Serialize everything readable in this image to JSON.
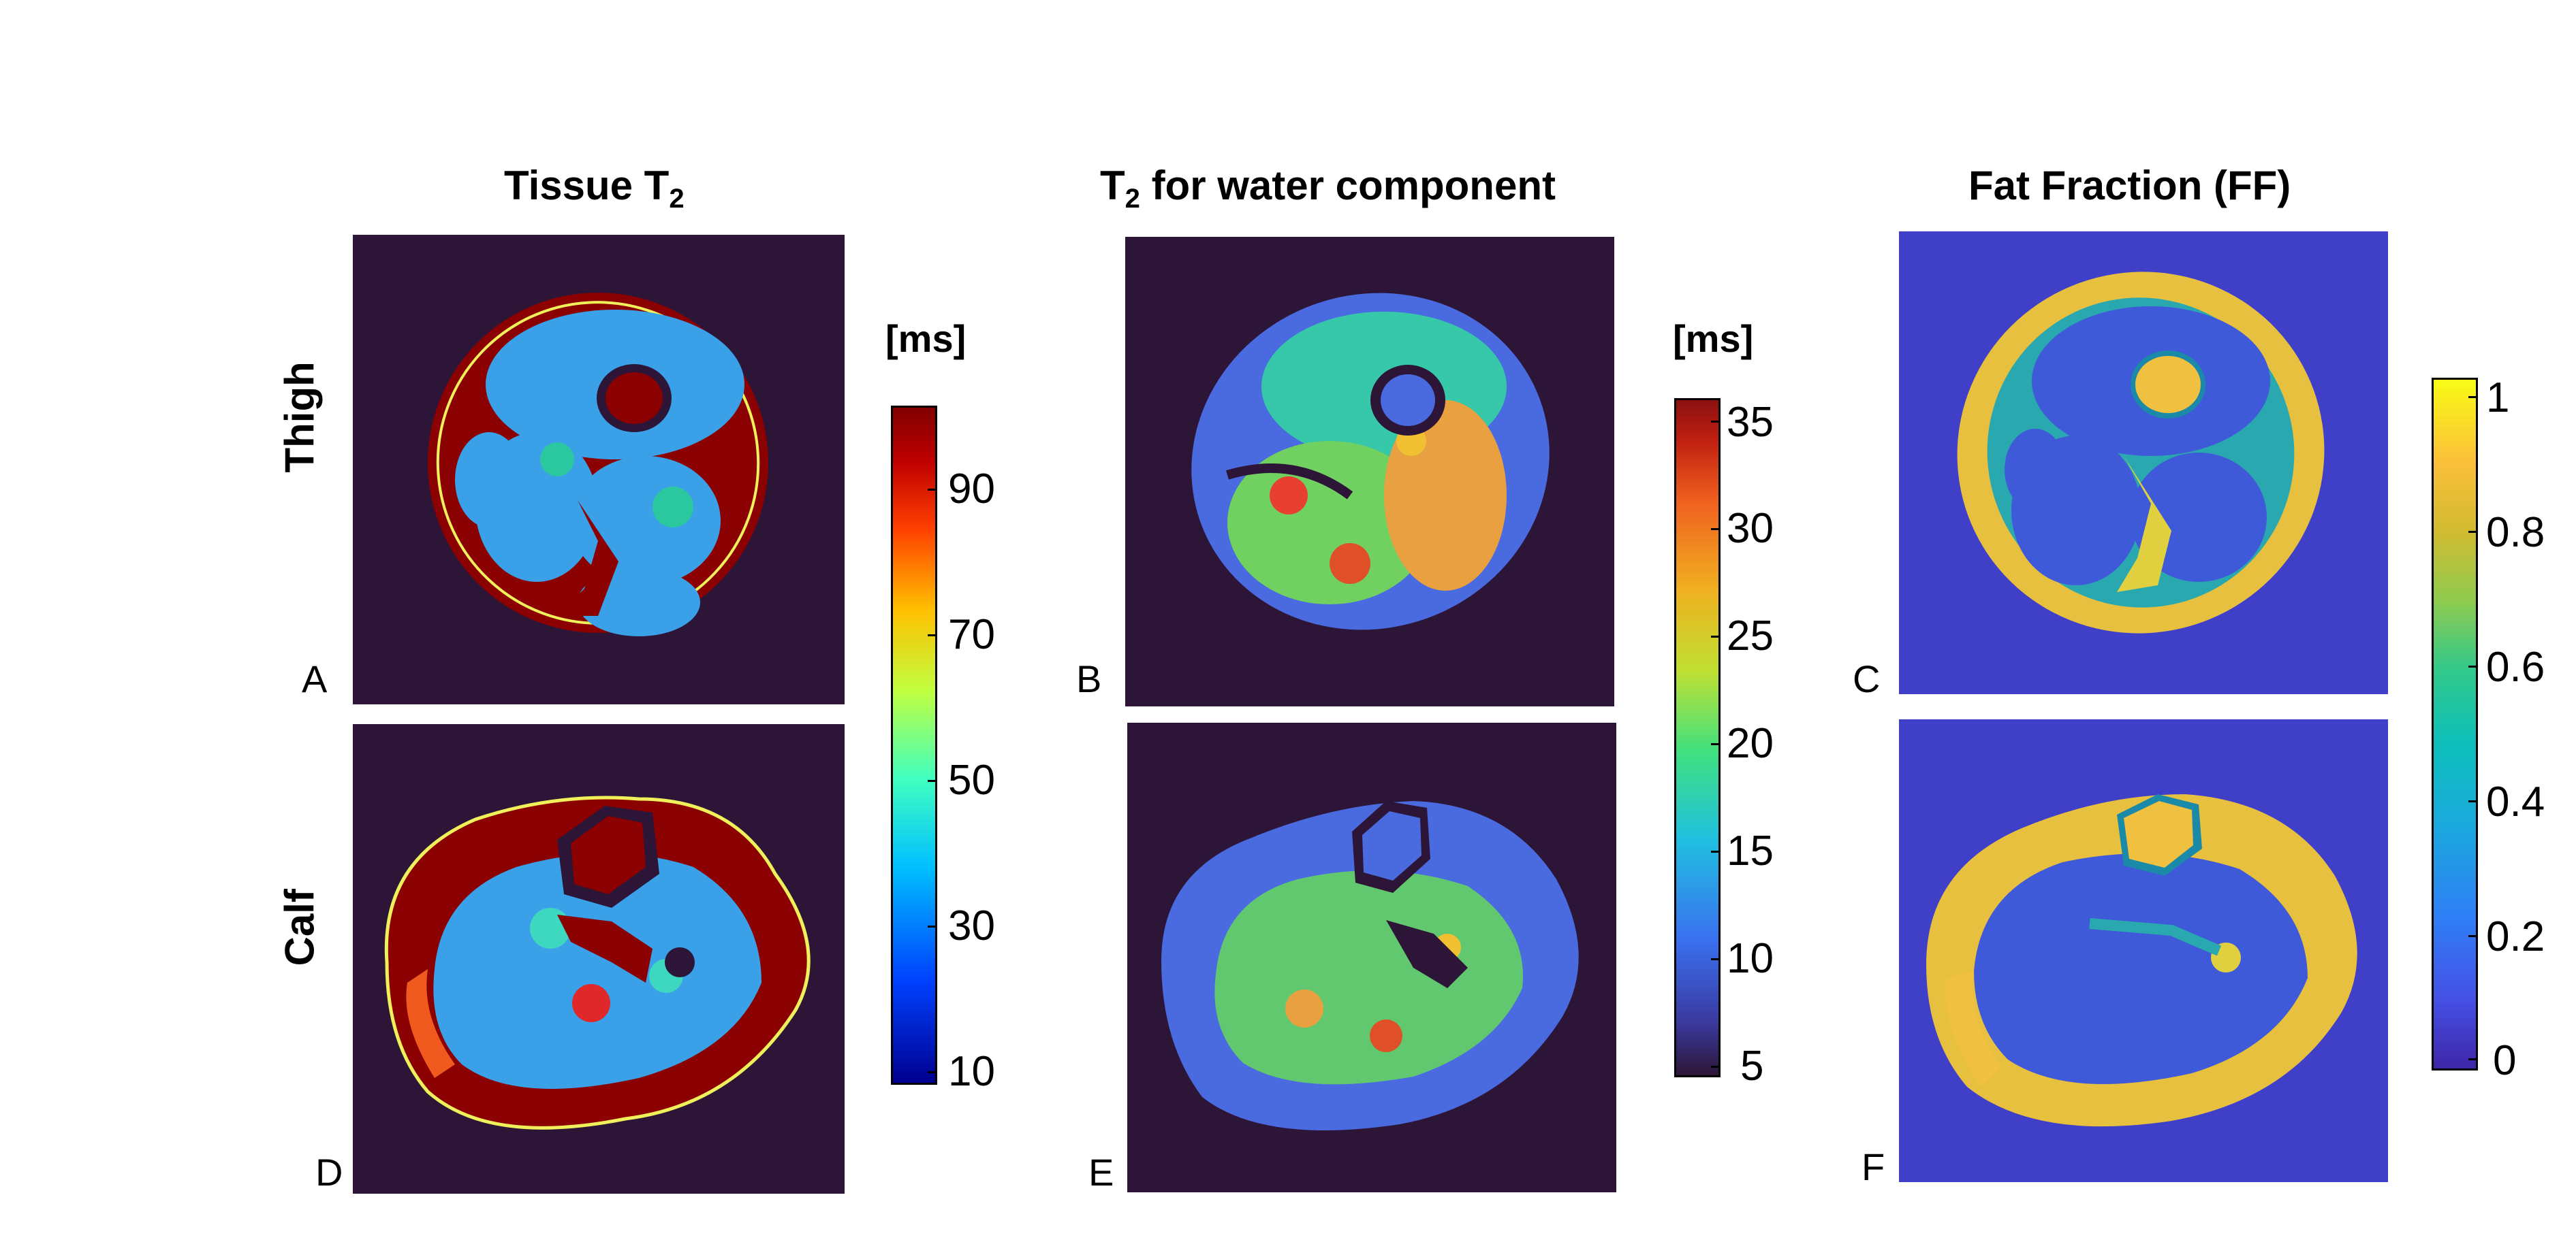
{
  "columns": [
    {
      "title_main": "Tissue T",
      "title_sub": "2",
      "title_suffix": ""
    },
    {
      "title_main": "T",
      "title_sub": "2",
      "title_suffix": " for water component"
    },
    {
      "title_main": "Fat Fraction (FF)",
      "title_sub": "",
      "title_suffix": ""
    }
  ],
  "rows": {
    "top": "Thigh",
    "bottom": "Calf"
  },
  "panels": {
    "A": "A",
    "B": "B",
    "C": "C",
    "D": "D",
    "E": "E",
    "F": "F"
  },
  "colorbars": {
    "t2": {
      "unit": "[ms]",
      "ticks": [
        "90",
        "70",
        "50",
        "30",
        "10"
      ],
      "colormap": "jet"
    },
    "t2w": {
      "unit": "[ms]",
      "ticks": [
        "35",
        "30",
        "25",
        "20",
        "15",
        "10",
        "5"
      ],
      "colormap": "jet"
    },
    "ff": {
      "unit": "",
      "ticks": [
        "1",
        "0.8",
        "0.6",
        "0.4",
        "0.2",
        "0"
      ],
      "colormap": "parula"
    }
  },
  "colors": {
    "background_dark": "#2d1537",
    "background_ff": "#3f3fc8",
    "jet_dark_red": "#8b0000",
    "parula_yellow": "#f6e51c"
  }
}
